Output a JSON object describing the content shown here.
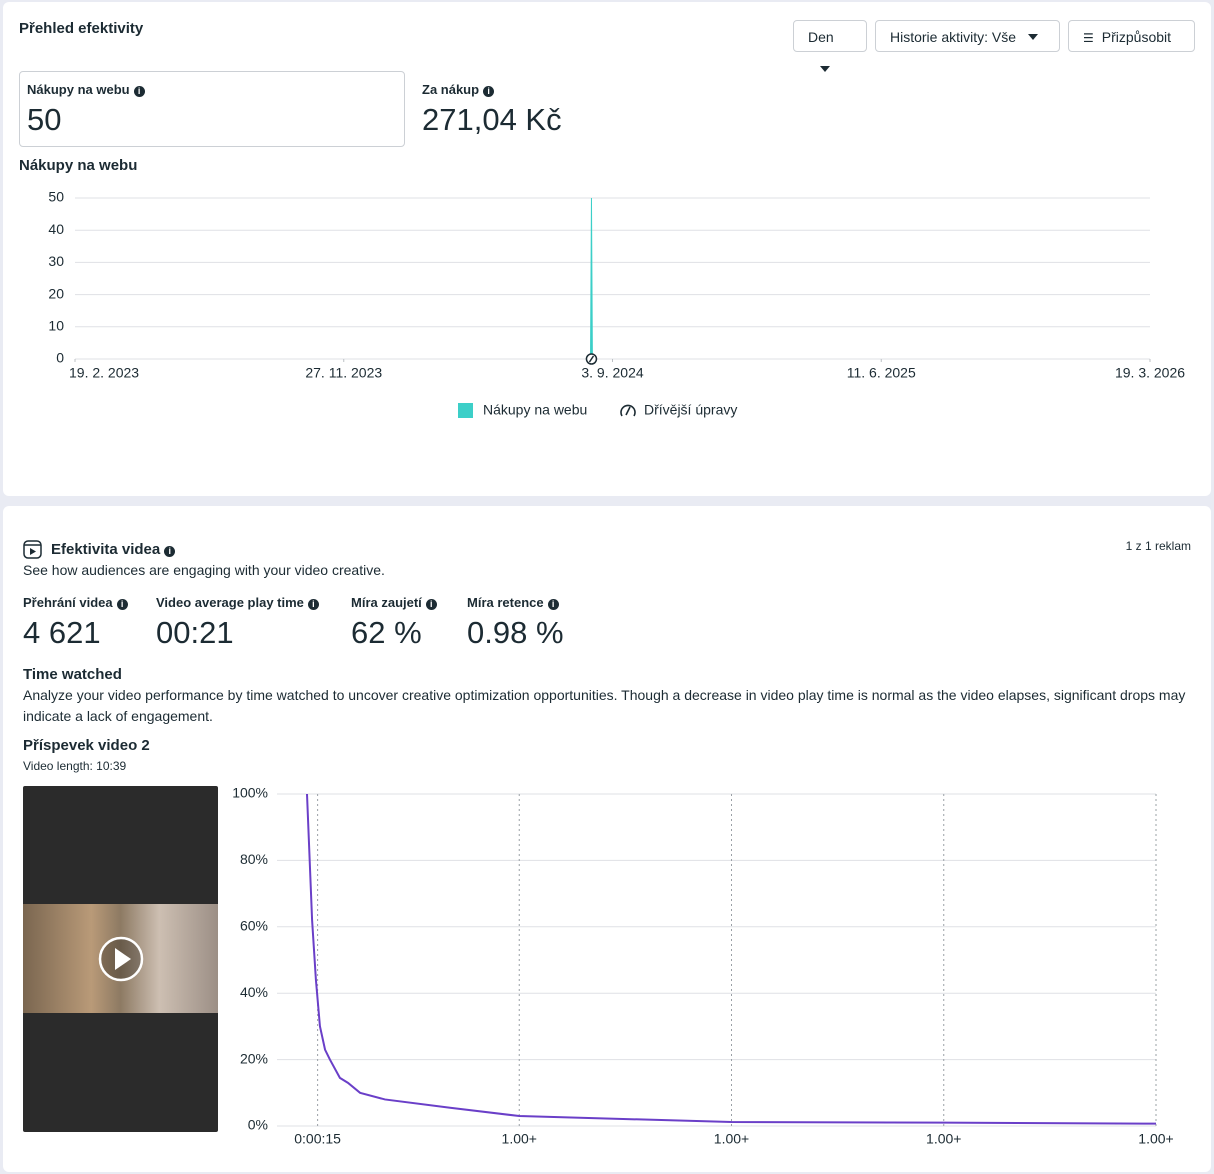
{
  "header": {
    "title": "Přehled efektivity",
    "buttons": [
      "Den",
      "Historie aktivity: Vše",
      "Přizpůsobit"
    ]
  },
  "metrics": [
    {
      "label": "Nákupy na webu",
      "value": "50"
    },
    {
      "label": "Za nákup",
      "value": "271,04 Kč"
    }
  ],
  "video": {
    "title": "Efektivita videa",
    "subtitle": "See how audiences are engaging with your video creative.",
    "ad_count": "1 z 1 reklam",
    "metrics": [
      {
        "label": "Přehrání videa",
        "value": "4 621"
      },
      {
        "label": "Video average play time",
        "value": "00:21"
      },
      {
        "label": "Míra zaujetí",
        "value": "62 %"
      },
      {
        "label": "Míra retence",
        "value": "0.98 %"
      }
    ],
    "time_watched": {
      "title": "Time watched",
      "description": "Analyze your video performance by time watched to uncover creative optimization opportunities. Though a decrease in video play time is normal as the video elapses, significant drops may indicate a lack of engagement."
    },
    "post": {
      "title": "Příspevek video 2",
      "length": "Video length: 10:39"
    }
  },
  "chart_data": [
    {
      "type": "area",
      "title": "Nákupy na webu",
      "x": [
        "2024-08-11",
        "2024-08-12",
        "2024-08-13"
      ],
      "series": [
        {
          "name": "Nákupy na webu",
          "color": "#3ccfc8",
          "values": [
            0,
            50,
            0
          ]
        }
      ],
      "xlim": [
        "2023-02-19",
        "2026-03-19"
      ],
      "xticks": [
        {
          "value": "2023-02-19",
          "label": "19. 2. 2023"
        },
        {
          "value": "2023-11-27",
          "label": "27. 11. 2023"
        },
        {
          "value": "2024-09-03",
          "label": "3. 9. 2024"
        },
        {
          "value": "2025-06-11",
          "label": "11. 6. 2025"
        },
        {
          "value": "2026-03-19",
          "label": "19. 3. 2026"
        }
      ],
      "ylim": [
        0,
        50
      ],
      "yticks": [
        0,
        10,
        20,
        30,
        40,
        50
      ],
      "grid": true,
      "annotations": [
        {
          "label": "Dřívější úpravy",
          "x": "2024-08-12"
        }
      ]
    },
    {
      "type": "line",
      "x": [
        0,
        0.024,
        0.042,
        0.061,
        0.085,
        0.108,
        0.155,
        0.193,
        0.25,
        0.367,
        0.674,
        1,
        2,
        3,
        4
      ],
      "series": [
        {
          "color": "#6a3fc8",
          "values": [
            100,
            62,
            44,
            30,
            23,
            20,
            14.5,
            13,
            10,
            8,
            5.5,
            3,
            1.2,
            1,
            0.7
          ]
        }
      ],
      "xlim": [
        0,
        4
      ],
      "xticks": [
        {
          "value": 0.05,
          "label": "0:00:15"
        },
        {
          "value": 1,
          "label": "1.00+"
        },
        {
          "value": 2,
          "label": "1.00+"
        },
        {
          "value": 3,
          "label": "1.00+"
        },
        {
          "value": 4,
          "label": "1.00+"
        }
      ],
      "ylim": [
        0,
        100
      ],
      "yticks": [
        {
          "value": 0,
          "label": "0%"
        },
        {
          "value": 20,
          "label": "20%"
        },
        {
          "value": 40,
          "label": "40%"
        },
        {
          "value": 60,
          "label": "60%"
        },
        {
          "value": 80,
          "label": "80%"
        },
        {
          "value": 100,
          "label": "100%"
        }
      ],
      "grid": true
    }
  ]
}
